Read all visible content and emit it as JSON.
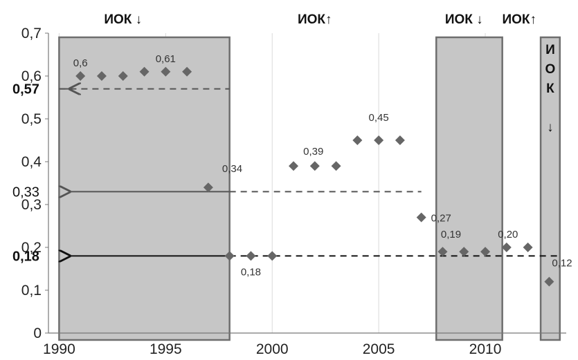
{
  "chart_data": {
    "type": "scatter",
    "title": "",
    "xlabel": "",
    "ylabel": "",
    "xlim": [
      1989.5,
      2013.8
    ],
    "ylim": [
      0,
      0.7
    ],
    "x_ticks": [
      "1990",
      "1995",
      "2000",
      "2005",
      "2010"
    ],
    "y_ticks": [
      "0",
      "0,1",
      "0,2",
      "0,3",
      "0,4",
      "0,5",
      "0,6",
      "0,7"
    ],
    "grid": "vertical",
    "marker_color": "#666666",
    "points": [
      {
        "x": 1991,
        "y": 0.6
      },
      {
        "x": 1992,
        "y": 0.6
      },
      {
        "x": 1993,
        "y": 0.6
      },
      {
        "x": 1994,
        "y": 0.61
      },
      {
        "x": 1995,
        "y": 0.61
      },
      {
        "x": 1996,
        "y": 0.61
      },
      {
        "x": 1997,
        "y": 0.34
      },
      {
        "x": 1998,
        "y": 0.18
      },
      {
        "x": 1999,
        "y": 0.18
      },
      {
        "x": 2000,
        "y": 0.18
      },
      {
        "x": 2001,
        "y": 0.39
      },
      {
        "x": 2002,
        "y": 0.39
      },
      {
        "x": 2003,
        "y": 0.39
      },
      {
        "x": 2004,
        "y": 0.45
      },
      {
        "x": 2005,
        "y": 0.45
      },
      {
        "x": 2006,
        "y": 0.45
      },
      {
        "x": 2007,
        "y": 0.27
      },
      {
        "x": 2008,
        "y": 0.19
      },
      {
        "x": 2009,
        "y": 0.19
      },
      {
        "x": 2010,
        "y": 0.19
      },
      {
        "x": 2011,
        "y": 0.2
      },
      {
        "x": 2012,
        "y": 0.2
      },
      {
        "x": 2013,
        "y": 0.12
      }
    ],
    "data_labels": [
      {
        "text": "0,6",
        "x": 1991,
        "y": 0.6
      },
      {
        "text": "0,61",
        "x": 1995,
        "y": 0.61
      },
      {
        "text": "0,34",
        "x": 1997,
        "y": 0.34
      },
      {
        "text": "0,18",
        "x": 1999,
        "y": 0.18
      },
      {
        "text": "0,39",
        "x": 2002,
        "y": 0.39
      },
      {
        "text": "0,45",
        "x": 2005,
        "y": 0.45
      },
      {
        "text": "0,27",
        "x": 2007,
        "y": 0.27
      },
      {
        "text": "0,19",
        "x": 2008,
        "y": 0.19
      },
      {
        "text": "0,20",
        "x": 2011,
        "y": 0.2
      },
      {
        "text": "0,12",
        "x": 2013,
        "y": 0.12
      }
    ],
    "shaded_regions": [
      {
        "x0": 1990,
        "x1": 1998
      },
      {
        "x0": 2007.7,
        "x1": 2010.8
      },
      {
        "x0": 2012.6,
        "x1": 2013.5
      }
    ],
    "region_labels": [
      {
        "text": "ИОК ↓",
        "x": 1993
      },
      {
        "text": "ИОК↑",
        "x": 2002
      },
      {
        "text": "ИОК ↓",
        "x": 2009
      },
      {
        "text": "ИОК↑",
        "x": 2011.6
      }
    ],
    "vertical_region_label": [
      "И",
      "О",
      "К",
      "",
      "↓"
    ],
    "mean_levels": [
      {
        "label": "0,57",
        "value": 0.57,
        "x_from": 1990,
        "x_to": 1998,
        "arrow_to": 1990.5,
        "style": "gray",
        "bold": true
      },
      {
        "label": "0,33",
        "value": 0.33,
        "x_from": 1998,
        "x_to": 2007,
        "arrow_to": 1990.5,
        "style": "gray",
        "bold": false
      },
      {
        "label": "0,18",
        "value": 0.18,
        "x_from": 1998,
        "x_to": 2013.5,
        "arrow_to": 1990.5,
        "style": "black",
        "bold": true
      }
    ]
  }
}
